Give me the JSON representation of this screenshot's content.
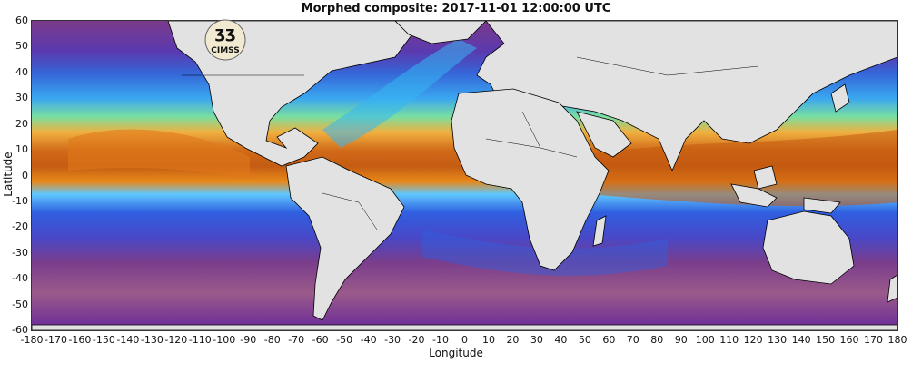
{
  "title": "Morphed composite: 2017-11-01 12:00:00 UTC",
  "logo_text": "CIMSS",
  "chart_data": {
    "type": "heatmap",
    "title": "Morphed composite: 2017-11-01 12:00:00 UTC",
    "xlabel": "Longitude",
    "ylabel": "Latitude",
    "xlim": [
      -180,
      180
    ],
    "ylim": [
      -60,
      60
    ],
    "xticks": [
      -180,
      -170,
      -160,
      -150,
      -140,
      -130,
      -120,
      -110,
      -100,
      -90,
      -80,
      -70,
      -60,
      -50,
      -40,
      -30,
      -20,
      -10,
      0,
      10,
      20,
      30,
      40,
      50,
      60,
      70,
      80,
      90,
      100,
      110,
      120,
      130,
      140,
      150,
      160,
      170,
      180
    ],
    "yticks": [
      60,
      50,
      40,
      30,
      20,
      10,
      0,
      -10,
      -20,
      -30,
      -40,
      -50,
      -60
    ],
    "colormap": [
      "#6b2d8c",
      "#8a4a9a",
      "#2f4fd0",
      "#38b8ff",
      "#6fe08a",
      "#f0d050",
      "#e8891a",
      "#b44a0a"
    ],
    "land_color": "#e2e2e2",
    "border_color": "#000000"
  }
}
